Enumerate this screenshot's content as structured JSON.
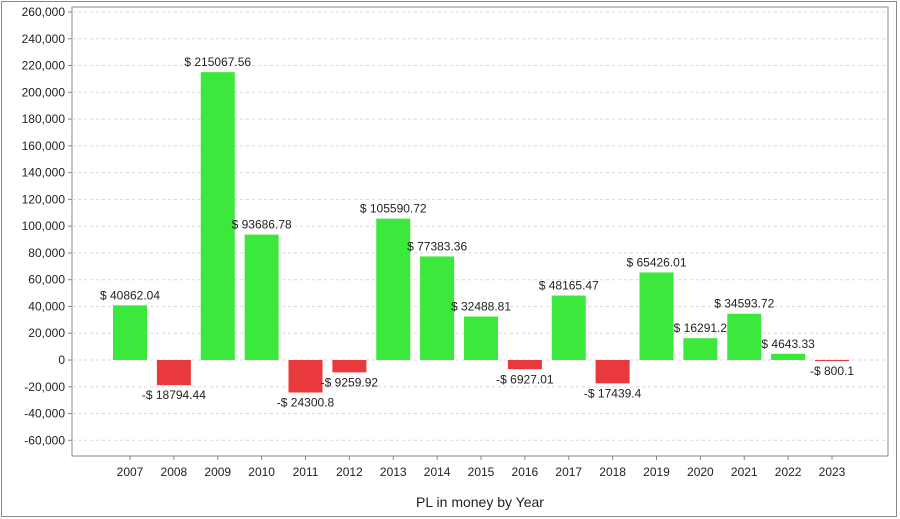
{
  "chart_data": {
    "type": "bar",
    "title": "",
    "xlabel": "PL in money by Year",
    "ylabel": "",
    "categories": [
      "2007",
      "2008",
      "2009",
      "2010",
      "2011",
      "2012",
      "2013",
      "2014",
      "2015",
      "2016",
      "2017",
      "2018",
      "2019",
      "2020",
      "2021",
      "2022",
      "2023"
    ],
    "values": [
      40862.04,
      -18794.44,
      215067.56,
      93686.78,
      -24300.8,
      -9259.92,
      105590.72,
      77383.36,
      32488.81,
      -6927.01,
      48165.47,
      -17439.4,
      65426.01,
      16291.2,
      34593.72,
      4643.33,
      -800.1
    ],
    "data_labels": [
      "$ 40862.04",
      "-$ 18794.44",
      "$ 215067.56",
      "$ 93686.78",
      "-$ 24300.8",
      "-$ 9259.92",
      "$ 105590.72",
      "$ 77383.36",
      "$ 32488.81",
      "-$ 6927.01",
      "$ 48165.47",
      "-$ 17439.4",
      "$ 65426.01",
      "$ 16291.2",
      "$ 34593.72",
      "$ 4643.33",
      "-$ 800.1"
    ],
    "ylim": [
      -60000,
      260000
    ],
    "yticks": [
      260000,
      240000,
      220000,
      200000,
      180000,
      160000,
      140000,
      120000,
      100000,
      80000,
      60000,
      40000,
      20000,
      0,
      -20000,
      -40000,
      -60000
    ],
    "ytick_labels": [
      "260,000",
      "240,000",
      "220,000",
      "200,000",
      "180,000",
      "160,000",
      "140,000",
      "120,000",
      "100,000",
      "80,000",
      "60,000",
      "40,000",
      "20,000",
      "0",
      "-20,000",
      "-40,000",
      "-60,000"
    ],
    "grid": true,
    "colors": {
      "positive": "#3de83d",
      "negative": "#e8393c",
      "grid": "#d8d8d8",
      "axis": "#888888"
    }
  }
}
